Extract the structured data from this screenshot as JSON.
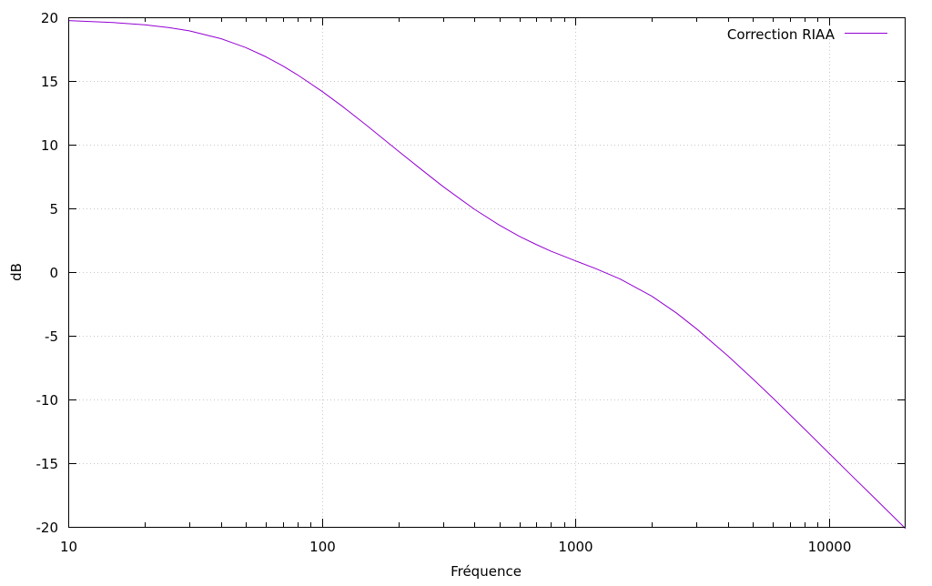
{
  "chart_data": {
    "type": "line",
    "title": "",
    "xlabel": "Fréquence",
    "ylabel": "dB",
    "x_scale": "log",
    "xlim": [
      10,
      20000
    ],
    "ylim": [
      -20,
      20
    ],
    "x_ticks": [
      {
        "value": 10,
        "label": "10"
      },
      {
        "value": 100,
        "label": "100"
      },
      {
        "value": 1000,
        "label": "1000"
      },
      {
        "value": 10000,
        "label": "10000"
      }
    ],
    "y_ticks": [
      {
        "value": -20,
        "label": "-20"
      },
      {
        "value": -15,
        "label": "-15"
      },
      {
        "value": -10,
        "label": "-10"
      },
      {
        "value": -5,
        "label": "-5"
      },
      {
        "value": 0,
        "label": "0"
      },
      {
        "value": 5,
        "label": "5"
      },
      {
        "value": 10,
        "label": "10"
      },
      {
        "value": 15,
        "label": "15"
      },
      {
        "value": 20,
        "label": "20"
      }
    ],
    "grid": true,
    "legend_position": "top-right",
    "series": [
      {
        "name": "Correction RIAA",
        "color": "#9400d3",
        "x": [
          10,
          15,
          20,
          25,
          30,
          40,
          50,
          60,
          70,
          80,
          100,
          120,
          150,
          200,
          250,
          300,
          400,
          500,
          600,
          700,
          800,
          1000,
          1200,
          1500,
          2000,
          2500,
          3000,
          4000,
          5000,
          6000,
          8000,
          10000,
          12000,
          15000,
          20000
        ],
        "y": [
          19.74,
          19.59,
          19.41,
          19.19,
          18.94,
          18.32,
          17.63,
          16.91,
          16.19,
          15.49,
          14.19,
          13.03,
          11.52,
          9.5,
          7.96,
          6.72,
          4.92,
          3.69,
          2.81,
          2.16,
          1.64,
          0.88,
          0.27,
          -0.55,
          -1.9,
          -3.22,
          -4.46,
          -6.61,
          -8.39,
          -9.89,
          -12.33,
          -14.24,
          -15.8,
          -17.69,
          -20.14
        ]
      }
    ]
  }
}
